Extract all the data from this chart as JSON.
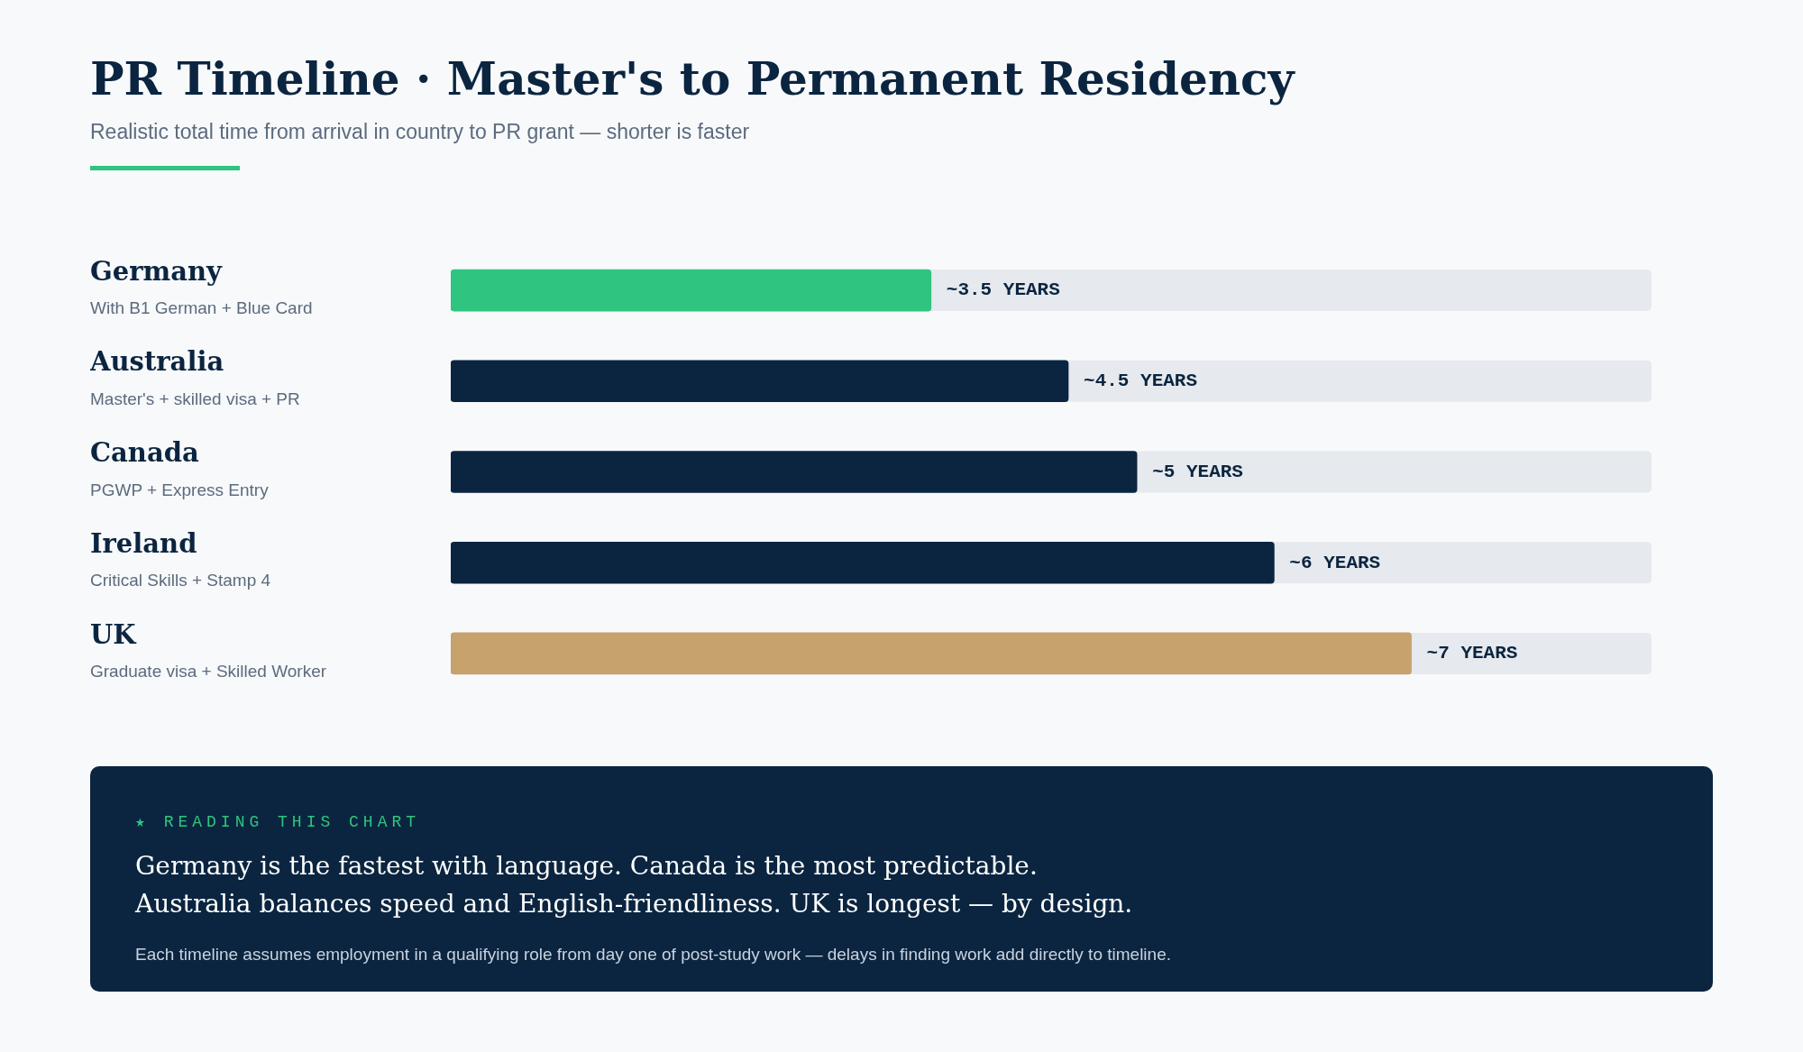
{
  "chart_data": {
    "type": "bar",
    "orientation": "horizontal",
    "title": "PR Timeline · Master's to Permanent Residency",
    "subtitle": "Realistic total time from arrival in country to PR grant — shorter is faster",
    "categories": [
      "Germany",
      "Australia",
      "Canada",
      "Ireland",
      "UK"
    ],
    "values": [
      3.5,
      4.5,
      5,
      6,
      7
    ],
    "colors": [
      "#2fc47f",
      "#0b2540",
      "#0b2540",
      "#0b2540",
      "#c8a26c"
    ],
    "value_labels": [
      "~3.5 YEARS",
      "~4.5 YEARS",
      "~5 YEARS",
      "~6 YEARS",
      "~7 YEARS"
    ],
    "xlim": [
      0,
      8.75
    ],
    "legend": false,
    "tick_labels": "y",
    "annotations": [
      "With B1 German + Blue Card",
      "Master's + skilled visa + PR",
      "PGWP + Express Entry",
      "Critical Skills + Stamp 4",
      "Graduate visa + Skilled Worker",
      "★ READING THIS CHART",
      "Germany is the fastest with language. Canada is the most predictable.",
      "Australia balances speed and English-friendliness. UK is longest — by design.",
      "Each timeline assumes employment in a qualifying role from day one of post-study work — delays in finding work add directly to timeline."
    ]
  }
}
